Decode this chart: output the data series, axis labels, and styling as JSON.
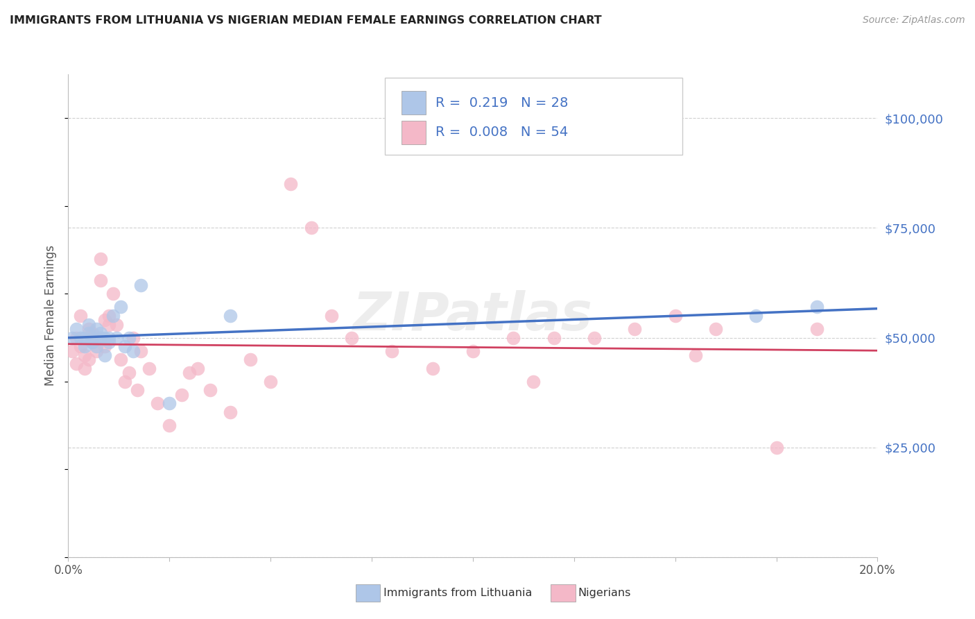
{
  "title": "IMMIGRANTS FROM LITHUANIA VS NIGERIAN MEDIAN FEMALE EARNINGS CORRELATION CHART",
  "source_text": "Source: ZipAtlas.com",
  "ylabel": "Median Female Earnings",
  "xlim": [
    0.0,
    0.2
  ],
  "ylim": [
    0,
    110000
  ],
  "yticks": [
    0,
    25000,
    50000,
    75000,
    100000
  ],
  "ytick_labels": [
    "",
    "$25,000",
    "$50,000",
    "$75,000",
    "$100,000"
  ],
  "xticks": [
    0.0,
    0.025,
    0.05,
    0.075,
    0.1,
    0.125,
    0.15,
    0.175,
    0.2
  ],
  "xtick_labels_show": [
    "0.0%",
    "",
    "",
    "",
    "",
    "",
    "",
    "",
    "20.0%"
  ],
  "background_color": "#ffffff",
  "grid_color": "#d0d0d0",
  "color_lithuania": "#aec6e8",
  "color_nigeria": "#f4b8c8",
  "line_color_lithuania": "#4472c4",
  "line_color_nigeria": "#d04060",
  "scatter_lithuania_x": [
    0.001,
    0.002,
    0.003,
    0.004,
    0.004,
    0.005,
    0.005,
    0.006,
    0.006,
    0.007,
    0.007,
    0.008,
    0.008,
    0.009,
    0.009,
    0.01,
    0.01,
    0.011,
    0.012,
    0.013,
    0.014,
    0.015,
    0.016,
    0.018,
    0.025,
    0.04,
    0.17,
    0.185
  ],
  "scatter_lithuania_y": [
    50000,
    52000,
    50000,
    50000,
    48000,
    51000,
    53000,
    50000,
    49000,
    52000,
    48000,
    51000,
    50000,
    50000,
    46000,
    50000,
    49000,
    55000,
    50000,
    57000,
    48000,
    50000,
    47000,
    62000,
    35000,
    55000,
    55000,
    57000
  ],
  "scatter_nigeria_x": [
    0.001,
    0.002,
    0.002,
    0.003,
    0.003,
    0.004,
    0.004,
    0.005,
    0.005,
    0.006,
    0.006,
    0.007,
    0.007,
    0.008,
    0.008,
    0.009,
    0.009,
    0.01,
    0.01,
    0.011,
    0.012,
    0.013,
    0.014,
    0.015,
    0.016,
    0.017,
    0.018,
    0.02,
    0.022,
    0.025,
    0.028,
    0.03,
    0.032,
    0.035,
    0.04,
    0.045,
    0.05,
    0.055,
    0.06,
    0.065,
    0.07,
    0.08,
    0.09,
    0.1,
    0.11,
    0.115,
    0.12,
    0.13,
    0.14,
    0.15,
    0.155,
    0.16,
    0.175,
    0.185
  ],
  "scatter_nigeria_y": [
    47000,
    44000,
    50000,
    48000,
    55000,
    46000,
    43000,
    52000,
    45000,
    49000,
    51000,
    50000,
    47000,
    68000,
    63000,
    54000,
    48000,
    55000,
    53000,
    60000,
    53000,
    45000,
    40000,
    42000,
    50000,
    38000,
    47000,
    43000,
    35000,
    30000,
    37000,
    42000,
    43000,
    38000,
    33000,
    45000,
    40000,
    85000,
    75000,
    55000,
    50000,
    47000,
    43000,
    47000,
    50000,
    40000,
    50000,
    50000,
    52000,
    55000,
    46000,
    52000,
    25000,
    52000
  ]
}
